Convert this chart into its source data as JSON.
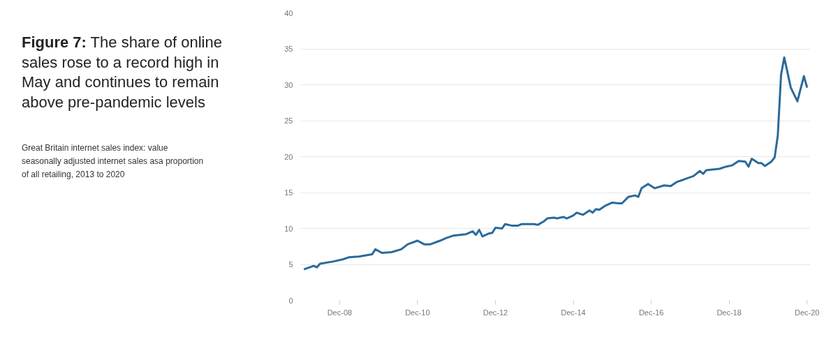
{
  "chart_data": {
    "type": "line",
    "title": "Figure 7: The share of online sales rose to a record high in May and continues to remain above pre-pandemic levels",
    "subtitle": "Great Britain internet sales index: value seasonally adjusted internet sales asa proportion of all retailing, 2013 to 2020",
    "x": [
      "2008-01",
      "2008-04",
      "2008-05",
      "2008-06",
      "2008-10",
      "2009-01",
      "2009-03",
      "2009-06",
      "2009-10",
      "2009-11",
      "2010-01",
      "2010-04",
      "2010-07",
      "2010-09",
      "2010-12",
      "2011-02",
      "2011-04",
      "2011-07",
      "2011-09",
      "2011-11",
      "2012-03",
      "2012-05",
      "2012-06",
      "2012-07",
      "2012-08",
      "2012-10",
      "2012-11",
      "2012-12",
      "2013-02",
      "2013-03",
      "2013-05",
      "2013-07",
      "2013-08",
      "2013-12",
      "2014-01",
      "2014-03",
      "2014-04",
      "2014-06",
      "2014-07",
      "2014-09",
      "2014-10",
      "2014-12",
      "2015-01",
      "2015-03",
      "2015-05",
      "2015-06",
      "2015-07",
      "2015-08",
      "2015-10",
      "2015-12",
      "2016-02",
      "2016-03",
      "2016-05",
      "2016-07",
      "2016-08",
      "2016-09",
      "2016-11",
      "2017-01",
      "2017-04",
      "2017-06",
      "2017-08",
      "2017-10",
      "2018-01",
      "2018-03",
      "2018-04",
      "2018-05",
      "2018-09",
      "2018-11",
      "2019-01",
      "2019-03",
      "2019-05",
      "2019-06",
      "2019-07",
      "2019-09",
      "2019-10",
      "2019-11",
      "2020-01",
      "2020-02",
      "2020-03",
      "2020-04",
      "2020-05",
      "2020-07",
      "2020-09",
      "2020-11",
      "2020-12"
    ],
    "series": [
      {
        "color": "#2b6a9a",
        "values": [
          4.3,
          4.8,
          4.6,
          5.1,
          5.4,
          5.7,
          6.0,
          6.1,
          6.4,
          7.1,
          6.6,
          6.7,
          7.1,
          7.8,
          8.3,
          7.8,
          7.8,
          8.3,
          8.7,
          9.0,
          9.2,
          9.6,
          9.1,
          9.8,
          8.9,
          9.3,
          9.4,
          10.1,
          10.0,
          10.6,
          10.4,
          10.4,
          10.6,
          10.6,
          10.5,
          11.0,
          11.4,
          11.5,
          11.4,
          11.6,
          11.4,
          11.8,
          12.2,
          11.9,
          12.5,
          12.2,
          12.7,
          12.6,
          13.2,
          13.6,
          13.5,
          13.5,
          14.4,
          14.6,
          14.4,
          15.6,
          16.2,
          15.6,
          16.0,
          15.9,
          16.5,
          16.8,
          17.3,
          18.0,
          17.6,
          18.1,
          18.3,
          18.6,
          18.8,
          19.4,
          19.3,
          18.6,
          19.7,
          19.1,
          19.1,
          18.7,
          19.3,
          19.9,
          22.9,
          31.4,
          33.8,
          29.6,
          27.7,
          31.2,
          29.6
        ]
      }
    ],
    "xlim": [
      "2007-12",
      "2021-01"
    ],
    "xticks": [
      {
        "value": "2008-12",
        "label": "Dec-08"
      },
      {
        "value": "2010-12",
        "label": "Dec-10"
      },
      {
        "value": "2012-12",
        "label": "Dec-12"
      },
      {
        "value": "2014-12",
        "label": "Dec-14"
      },
      {
        "value": "2016-12",
        "label": "Dec-16"
      },
      {
        "value": "2018-12",
        "label": "Dec-18"
      },
      {
        "value": "2020-12",
        "label": "Dec-20"
      }
    ],
    "ylim": [
      0,
      40
    ],
    "yticks": [
      0,
      5,
      10,
      15,
      20,
      25,
      30,
      35,
      40
    ],
    "grid": "y",
    "marker": "none",
    "line_style": "solid"
  }
}
